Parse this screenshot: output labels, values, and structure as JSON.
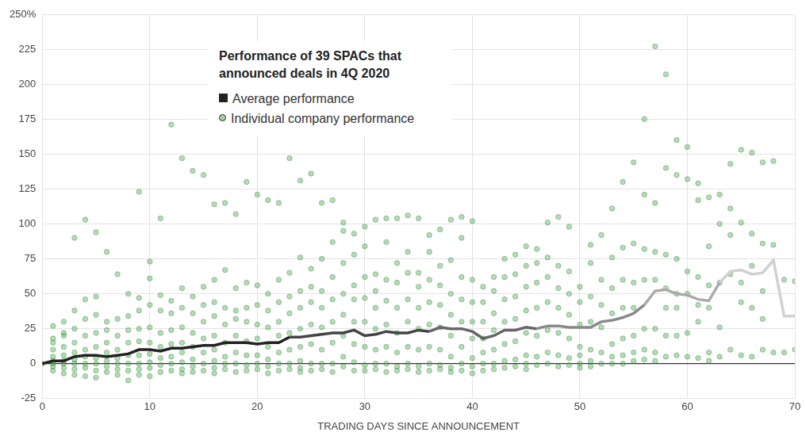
{
  "chart_data": {
    "type": "scatter",
    "title": "Performance of 39 SPACs that announced deals in 4Q 2020",
    "xlabel": "TRADING DAYS SINCE ANNOUNCEMENT",
    "xlim": [
      0,
      70
    ],
    "xticks": [
      0,
      10,
      20,
      30,
      40,
      50,
      60,
      70
    ],
    "ylim": [
      -25,
      250
    ],
    "yticks": [
      -25,
      0,
      25,
      50,
      75,
      100,
      125,
      150,
      175,
      200,
      225,
      {
        "value": 250,
        "label": "250%"
      }
    ],
    "grid": true,
    "legend": "upper left",
    "x": [
      0,
      1,
      2,
      3,
      4,
      5,
      6,
      7,
      8,
      9,
      10,
      11,
      12,
      13,
      14,
      15,
      16,
      17,
      18,
      19,
      20,
      21,
      22,
      23,
      24,
      25,
      26,
      27,
      28,
      29,
      30,
      31,
      32,
      33,
      34,
      35,
      36,
      37,
      38,
      39,
      40,
      41,
      42,
      43,
      44,
      45,
      46,
      47,
      48,
      49,
      50,
      51,
      52,
      53,
      54,
      55,
      56,
      57,
      58,
      59,
      60,
      61,
      62,
      63,
      64,
      65,
      66,
      67,
      68,
      69,
      70
    ],
    "series": [
      {
        "name": "Average performance",
        "type": "line",
        "color": "#222222",
        "colors": [
          "#222222",
          "#222222",
          "#222222",
          "#222222",
          "#222222",
          "#222222",
          "#222222",
          "#222222",
          "#222222",
          "#222222",
          "#222222",
          "#222222",
          "#222222",
          "#222222",
          "#222222",
          "#222222",
          "#222222",
          "#222222",
          "#222222",
          "#222222",
          "#222222",
          "#222222",
          "#222222",
          "#444444",
          "#444444",
          "#444444",
          "#444444",
          "#444444",
          "#444444",
          "#444444",
          "#444444",
          "#444444",
          "#444444",
          "#444444",
          "#444444",
          "#444444",
          "#666666",
          "#666666",
          "#666666",
          "#666666",
          "#666666",
          "#666666",
          "#666666",
          "#666666",
          "#666666",
          "#666666",
          "#888888",
          "#888888",
          "#888888",
          "#888888",
          "#888888",
          "#888888",
          "#888888",
          "#888888",
          "#888888",
          "#888888",
          "#aaaaaa",
          "#aaaaaa",
          "#aaaaaa",
          "#aaaaaa",
          "#aaaaaa",
          "#aaaaaa",
          "#aaaaaa",
          "#d0d0d0",
          "#d0d0d0",
          "#d0d0d0",
          "#d0d0d0",
          "#d0d0d0",
          "#d0d0d0",
          "#d0d0d0",
          "#d0d0d0"
        ],
        "values": [
          0,
          2,
          2,
          5,
          6,
          6,
          5,
          6,
          7,
          10,
          10,
          9,
          11,
          11,
          12,
          13,
          13,
          15,
          15,
          15,
          14,
          15,
          15,
          19,
          19,
          20,
          21,
          22,
          22,
          24,
          20,
          21,
          23,
          22,
          22,
          24,
          23,
          26,
          25,
          25,
          23,
          18,
          20,
          24,
          24,
          26,
          25,
          27,
          27,
          26,
          26,
          26,
          30,
          31,
          33,
          36,
          42,
          52,
          53,
          50,
          49,
          46,
          45,
          58,
          66,
          67,
          64,
          65,
          74,
          34,
          34
        ]
      },
      {
        "name": "Individual company performance",
        "type": "scatter",
        "marker": "circle",
        "color": "#4caf50",
        "values": [
          [
            0
          ],
          [
            27,
            18,
            10,
            5,
            2,
            0,
            -2,
            -5,
            15
          ],
          [
            30,
            20,
            12,
            6,
            2,
            0,
            -3,
            -7,
            22
          ],
          [
            90,
            38,
            25,
            15,
            8,
            3,
            0,
            -4,
            -8
          ],
          [
            103,
            46,
            32,
            20,
            10,
            5,
            0,
            -3,
            -9
          ],
          [
            94,
            48,
            35,
            22,
            12,
            4,
            0,
            -5,
            -10
          ],
          [
            80,
            30,
            24,
            15,
            8,
            2,
            -2,
            -6
          ],
          [
            64,
            32,
            20,
            10,
            4,
            0,
            -4,
            -8
          ],
          [
            50,
            34,
            24,
            15,
            6,
            0,
            -5,
            -12
          ],
          [
            123,
            47,
            38,
            25,
            16,
            6,
            0,
            -4,
            -8
          ],
          [
            73,
            61,
            42,
            26,
            15,
            7,
            1,
            -3,
            -9
          ],
          [
            104,
            49,
            38,
            22,
            12,
            4,
            -1,
            -6
          ],
          [
            171,
            45,
            36,
            24,
            14,
            5,
            0,
            -5
          ],
          [
            147,
            54,
            40,
            26,
            15,
            8,
            1,
            -4,
            -7
          ],
          [
            138,
            48,
            36,
            22,
            12,
            3,
            -2,
            -6
          ],
          [
            135,
            55,
            42,
            30,
            18,
            8,
            0,
            -5
          ],
          [
            114,
            60,
            44,
            34,
            20,
            10,
            2,
            -3,
            -7
          ],
          [
            115,
            67,
            40,
            28,
            15,
            5,
            0,
            -4
          ],
          [
            107,
            54,
            38,
            32,
            20,
            8,
            0,
            -6
          ],
          [
            130,
            58,
            40,
            30,
            16,
            6,
            -1,
            -5
          ],
          [
            121,
            56,
            42,
            28,
            18,
            6,
            0,
            -4
          ],
          [
            117,
            50,
            38,
            26,
            12,
            3,
            -2,
            -7
          ],
          [
            115,
            60,
            44,
            30,
            20,
            8,
            0,
            -5
          ],
          [
            147,
            65,
            48,
            36,
            22,
            10,
            0,
            -4
          ],
          [
            131,
            76,
            52,
            40,
            25,
            12,
            2,
            -3,
            -6
          ],
          [
            136,
            68,
            55,
            44,
            28,
            14,
            0,
            -5
          ],
          [
            115,
            75,
            52,
            40,
            26,
            10,
            0,
            -4
          ],
          [
            117,
            87,
            62,
            46,
            30,
            15,
            0,
            -6
          ],
          [
            101,
            95,
            72,
            50,
            35,
            20,
            5,
            -2
          ],
          [
            93,
            78,
            56,
            46,
            30,
            14,
            1,
            -5
          ],
          [
            98,
            84,
            62,
            47,
            30,
            12,
            -1,
            -5
          ],
          [
            103,
            64,
            52,
            40,
            25,
            10,
            0,
            -4
          ],
          [
            104,
            87,
            60,
            45,
            28,
            12,
            0,
            -6
          ],
          [
            104,
            72,
            58,
            40,
            22,
            8,
            -2,
            -5
          ],
          [
            106,
            80,
            65,
            46,
            30,
            12,
            0,
            -4
          ],
          [
            104,
            65,
            55,
            40,
            25,
            10,
            -2,
            -6
          ],
          [
            92,
            80,
            60,
            44,
            28,
            12,
            0,
            -5
          ],
          [
            96,
            70,
            56,
            42,
            26,
            10,
            -1,
            -4
          ],
          [
            103,
            74,
            50,
            35,
            20,
            5,
            -3,
            -6
          ],
          [
            105,
            90,
            62,
            46,
            30,
            12,
            0,
            -5
          ],
          [
            102,
            60,
            44,
            30,
            18,
            4,
            -2,
            -7
          ],
          [
            55,
            44,
            30,
            18,
            8,
            0,
            -5
          ],
          [
            62,
            52,
            36,
            24,
            10,
            0,
            -4
          ],
          [
            75,
            62,
            46,
            30,
            14,
            2,
            -3
          ],
          [
            78,
            64,
            48,
            32,
            16,
            3,
            -2
          ],
          [
            84,
            70,
            55,
            38,
            22,
            6,
            0,
            -4
          ],
          [
            82,
            72,
            58,
            40,
            20,
            5,
            -1
          ],
          [
            101,
            76,
            62,
            44,
            24,
            8,
            0
          ],
          [
            105,
            70,
            54,
            40,
            22,
            6,
            -2
          ],
          [
            98,
            66,
            50,
            35,
            18,
            4,
            -1
          ],
          [
            55,
            44,
            28,
            12,
            6,
            0,
            -3
          ],
          [
            85,
            72,
            48,
            30,
            10,
            2,
            -2
          ],
          [
            92,
            60,
            42,
            26,
            8,
            0
          ],
          [
            111,
            76,
            54,
            36,
            14,
            5,
            0
          ],
          [
            130,
            83,
            60,
            40,
            18,
            6,
            0
          ],
          [
            144,
            86,
            58,
            40,
            20,
            8,
            2
          ],
          [
            175,
            121,
            82,
            60,
            25,
            10,
            3
          ],
          [
            227,
            115,
            80,
            60,
            25,
            8,
            2
          ],
          [
            207,
            140,
            78,
            54,
            40,
            20,
            5
          ],
          [
            160,
            135,
            75,
            50,
            40,
            20,
            6
          ],
          [
            155,
            132,
            66,
            50,
            22,
            5
          ],
          [
            129,
            117,
            62,
            42,
            30,
            4
          ],
          [
            119,
            84,
            56,
            40,
            8,
            2
          ],
          [
            121,
            100,
            58,
            26,
            5
          ],
          [
            143,
            111,
            92,
            64,
            10
          ],
          [
            153,
            101,
            58,
            44,
            6
          ],
          [
            151,
            93,
            70,
            40,
            5
          ],
          [
            144,
            86,
            52,
            32,
            10
          ],
          [
            145,
            85,
            8
          ],
          [
            60,
            8
          ],
          [
            59,
            10
          ]
        ]
      }
    ]
  }
}
